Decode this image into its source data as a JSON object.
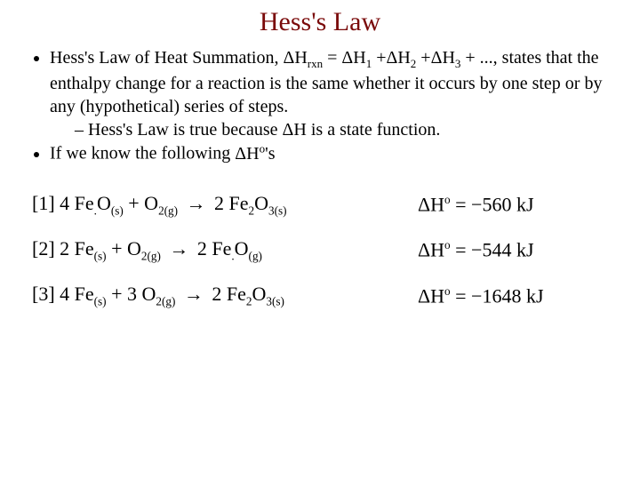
{
  "title": "Hess's Law",
  "colors": {
    "title_color": "#7a0a0a",
    "text_color": "#000000",
    "background": "#ffffff"
  },
  "typography": {
    "title_fontsize": 30,
    "body_fontsize": 20,
    "eq_fontsize": 22,
    "font_family": "Times New Roman"
  },
  "bullets": {
    "b1_part1": "Hess's Law of Heat Summation, ",
    "b1_formula_html": "ΔH<span class='sub'>rxn</span> = ΔH<span class='sub'>1</span> +ΔH<span class='sub'>2</span> +ΔH<span class='sub'>3</span> + ...",
    "b1_part2": ", states that the enthalpy change for a reaction is the same whether it occurs by one step or by any (hypothetical) series of of steps.",
    "b1_sub_part1": "Hess's Law is true because ",
    "b1_sub_formula": "ΔH",
    "b1_sub_part2": " is a state function.",
    "b2_part1": "If we know the following ",
    "b2_formula_html": "ΔH<span class='sup'>o</span>'s"
  },
  "equations": [
    {
      "num": "[1]",
      "lhs_html": "4 Fe<span class='esub'>.</span>O<span class='esub'>(s)</span> + O<span class='esub'>2(g)</span>",
      "rhs_html": "2 Fe<span class='esub'>2</span>O<span class='esub'>3(s)</span>",
      "dH_html": "ΔH<span class='esup'>o</span> = −560 kJ"
    },
    {
      "num": "[2]",
      "lhs_html": "2 Fe<span class='esub'>(s)</span> + O<span class='esub'>2(g)</span>",
      "rhs_html": "2 Fe<span class='esub'>.</span>O<span class='esub'>(g)</span>",
      "dH_html": "ΔH<span class='esup'>o</span> = −544 kJ"
    },
    {
      "num": "[3]",
      "lhs_html": "4 Fe<span class='esub'>(s)</span> + 3 O<span class='esub'>2(g)</span>",
      "rhs_html": "2 Fe<span class='esub'>2</span>O<span class='esub'>3(s)</span>",
      "dH_html": "ΔH<span class='esup'>o</span> = −1648 kJ"
    }
  ]
}
